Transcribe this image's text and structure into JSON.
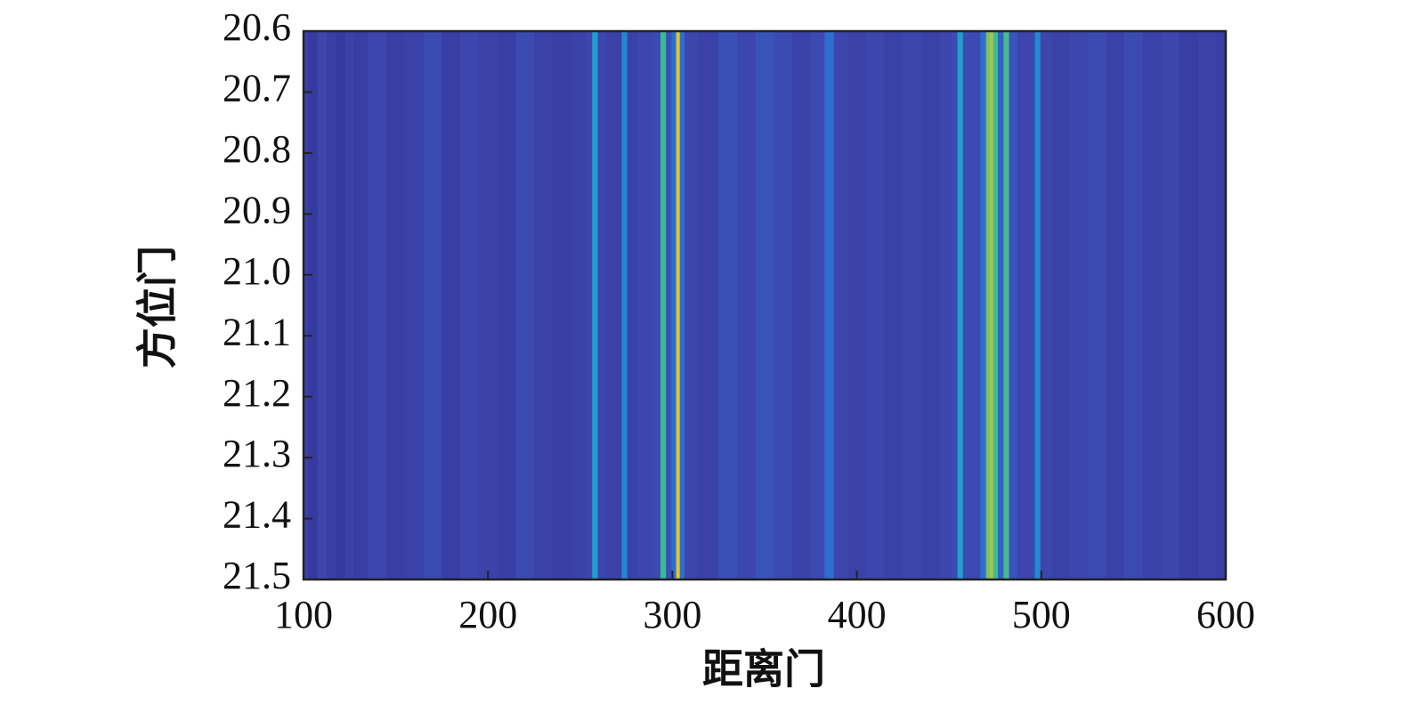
{
  "chart_data": {
    "type": "heatmap",
    "xlabel": "距离门",
    "ylabel": "方位门",
    "x": [
      100,
      105,
      110,
      115,
      120,
      125,
      130,
      140,
      150,
      160,
      170,
      180,
      190,
      200,
      210,
      220,
      230,
      240,
      250,
      255,
      258,
      261,
      268,
      271,
      274,
      277,
      285,
      292,
      295,
      298,
      301,
      303,
      305,
      308,
      320,
      330,
      340,
      350,
      360,
      370,
      380,
      385,
      390,
      400,
      410,
      420,
      430,
      440,
      450,
      453,
      456,
      459,
      465,
      469,
      471,
      473,
      475,
      478,
      481,
      484,
      490,
      495,
      498,
      501,
      510,
      520,
      530,
      540,
      550,
      560,
      570,
      580,
      590,
      600
    ],
    "values": [
      0.12,
      0.08,
      0.14,
      0.1,
      0.08,
      0.12,
      0.1,
      0.14,
      0.1,
      0.12,
      0.16,
      0.1,
      0.14,
      0.12,
      0.1,
      0.16,
      0.12,
      0.1,
      0.12,
      0.14,
      0.45,
      0.14,
      0.12,
      0.12,
      0.38,
      0.12,
      0.14,
      0.16,
      0.6,
      0.18,
      0.3,
      0.88,
      0.3,
      0.14,
      0.12,
      0.18,
      0.14,
      0.2,
      0.16,
      0.12,
      0.16,
      0.3,
      0.14,
      0.12,
      0.14,
      0.12,
      0.14,
      0.12,
      0.14,
      0.16,
      0.45,
      0.16,
      0.16,
      0.3,
      0.7,
      0.78,
      0.6,
      0.25,
      0.62,
      0.2,
      0.14,
      0.14,
      0.38,
      0.14,
      0.12,
      0.14,
      0.16,
      0.12,
      0.16,
      0.12,
      0.14,
      0.1,
      0.12,
      0.1
    ],
    "clim": [
      0,
      1
    ],
    "colormap": [
      "#2e2a8c",
      "#3c47ad",
      "#3168d0",
      "#1f9ad3",
      "#2bb7a5",
      "#7fc35e",
      "#d6c236",
      "#f5e126"
    ],
    "xlim": [
      100,
      600
    ],
    "xticks": [
      100,
      200,
      300,
      400,
      500,
      600
    ],
    "ylim": [
      20.6,
      21.5
    ],
    "yreverse": true,
    "yticks": [
      20.6,
      20.7,
      20.8,
      20.9,
      {
        "value": 21,
        "label": "21.0"
      },
      21.1,
      21.2,
      21.3,
      21.4,
      21.5
    ]
  }
}
